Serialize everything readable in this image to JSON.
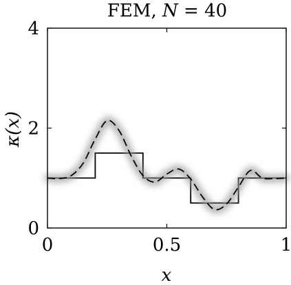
{
  "chart_data": {
    "type": "line",
    "title": "FEM, N = 40",
    "title_parts": {
      "prefix": "FEM, ",
      "var": "N",
      "suffix": " = 40"
    },
    "xlabel": "x",
    "ylabel": "κ(x)",
    "xlim": [
      0,
      1
    ],
    "ylim": [
      0,
      4
    ],
    "x_ticks": [
      0,
      0.5,
      1
    ],
    "x_tick_labels": [
      "0",
      "0.5",
      "1"
    ],
    "y_ticks": [
      0,
      2,
      4
    ],
    "y_tick_labels": [
      "0",
      "2",
      "4"
    ],
    "grid": false,
    "series": [
      {
        "style": "solid-step",
        "color": "#000000",
        "x": [
          0,
          0.2,
          0.2,
          0.4,
          0.4,
          0.6,
          0.6,
          0.8,
          0.8,
          1.0
        ],
        "y": [
          1.0,
          1.0,
          1.5,
          1.5,
          1.0,
          1.0,
          0.5,
          0.5,
          1.0,
          1.0
        ]
      },
      {
        "style": "dashed",
        "color": "#000000",
        "band_color": "#9a9a9a",
        "x": [
          0,
          0.05,
          0.1,
          0.15,
          0.2,
          0.25,
          0.3,
          0.35,
          0.4,
          0.45,
          0.5,
          0.55,
          0.6,
          0.65,
          0.7,
          0.75,
          0.8,
          0.85,
          0.9,
          0.95,
          1.0
        ],
        "y": [
          1.0,
          0.99,
          1.05,
          1.3,
          1.78,
          2.15,
          1.95,
          1.45,
          1.05,
          0.92,
          1.08,
          1.18,
          0.98,
          0.62,
          0.37,
          0.48,
          0.82,
          1.15,
          1.0,
          0.99,
          1.0
        ]
      }
    ]
  }
}
